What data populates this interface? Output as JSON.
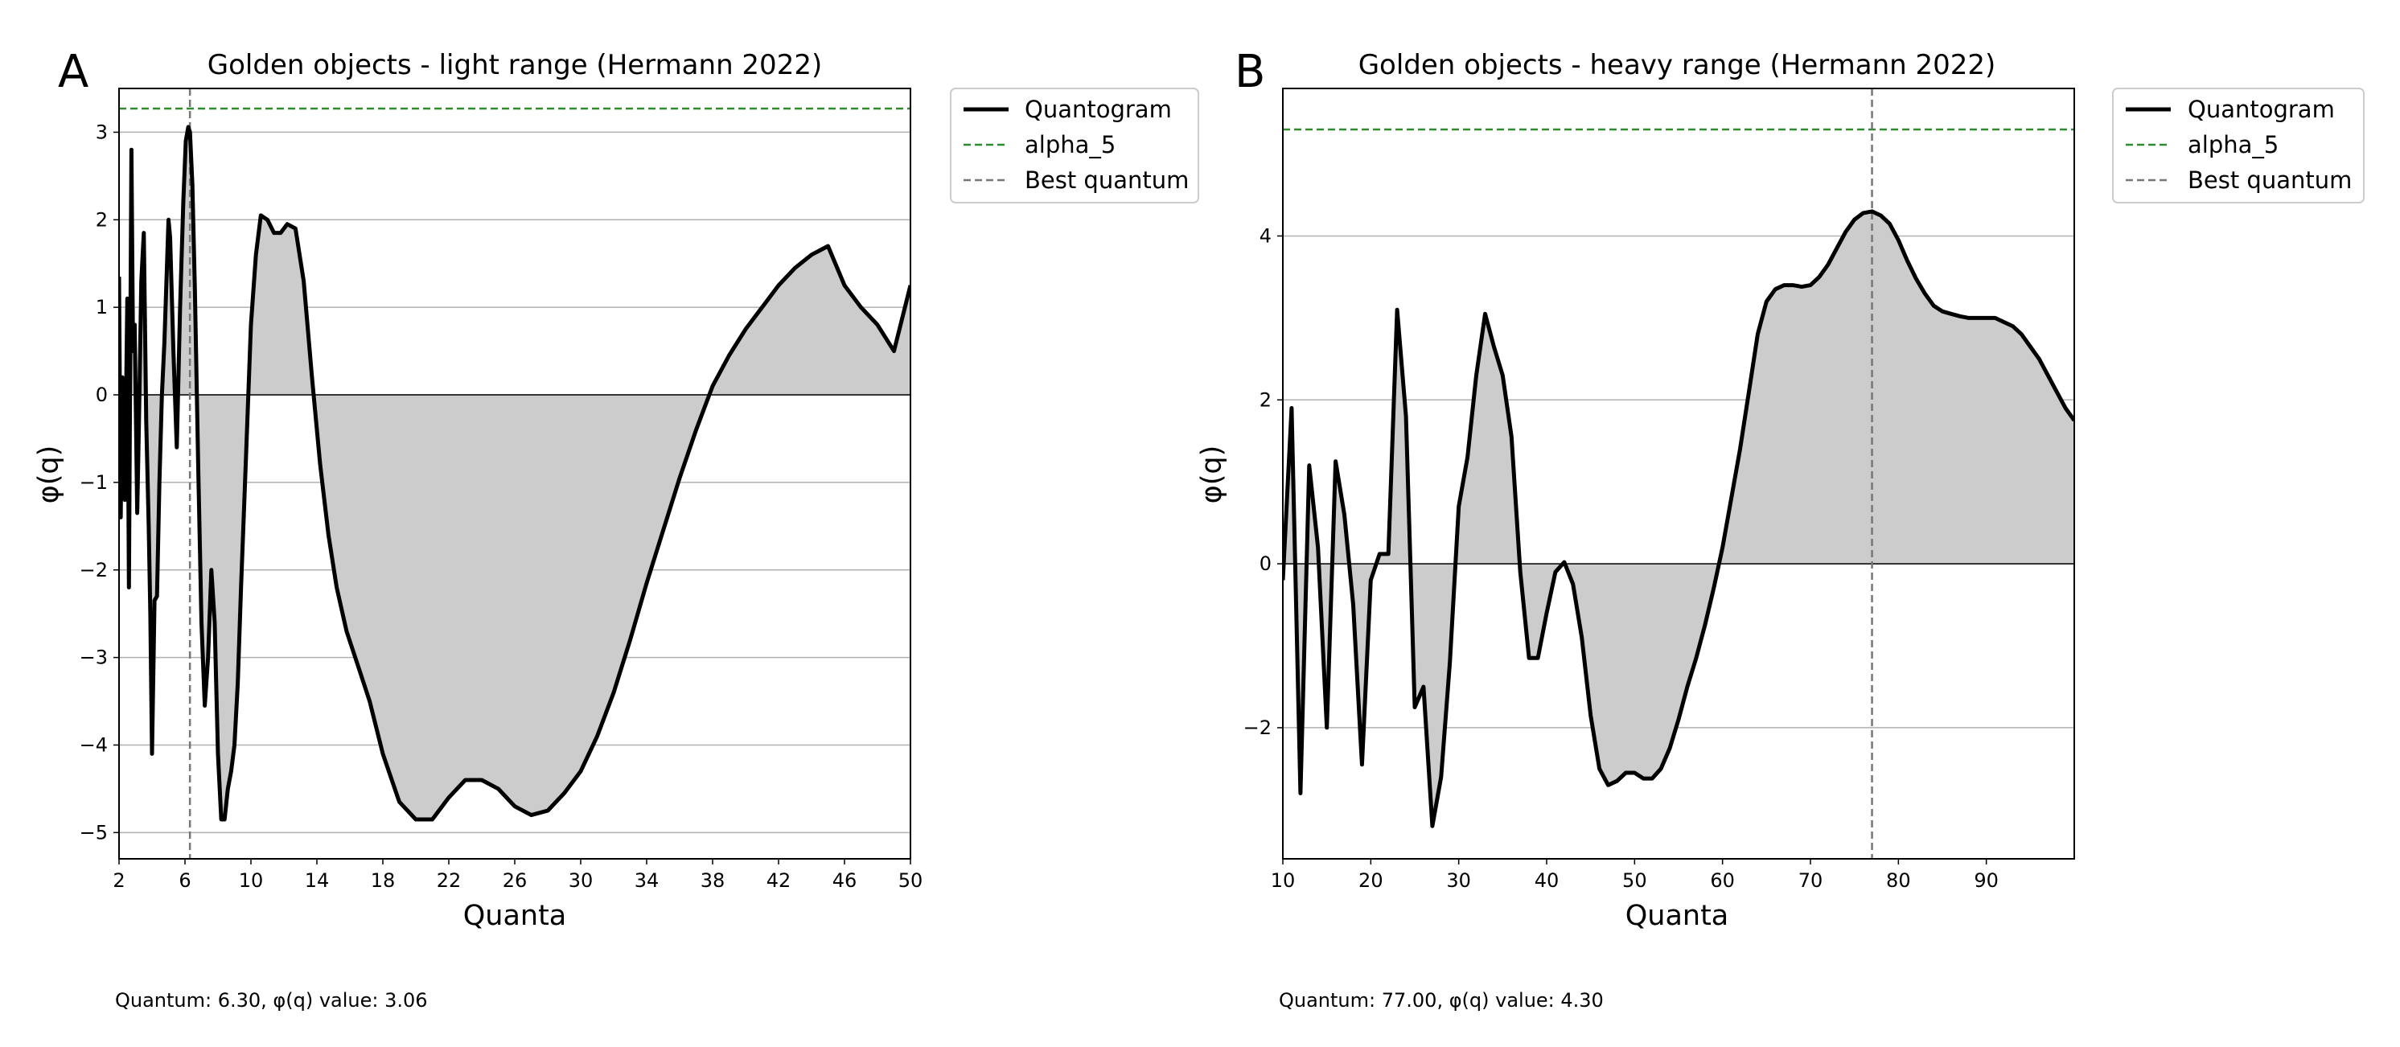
{
  "figure": {
    "panel_labels": [
      "A",
      "B"
    ]
  },
  "chart_data": [
    {
      "type": "line",
      "panel": "A",
      "title": "Golden objects - light range (Hermann 2022)",
      "xlabel": "Quanta",
      "ylabel": "φ(q)",
      "xlim": [
        2,
        50
      ],
      "ylim": [
        -5.3,
        3.5
      ],
      "xticks": [
        2,
        6,
        10,
        14,
        18,
        22,
        26,
        30,
        34,
        38,
        42,
        46,
        50
      ],
      "yticks": [
        3,
        2,
        1,
        0,
        -1,
        -2,
        -3,
        -4,
        -5
      ],
      "grid": "horizontal",
      "legend_position": "outside-top-right",
      "fill_between_zero": true,
      "series": [
        {
          "name": "Quantogram",
          "color": "#000000",
          "x": [
            2.0,
            2.1,
            2.2,
            2.35,
            2.5,
            2.6,
            2.75,
            2.85,
            2.95,
            3.1,
            3.2,
            3.35,
            3.5,
            3.65,
            3.8,
            3.9,
            4.0,
            4.15,
            4.3,
            4.45,
            4.6,
            4.75,
            4.9,
            5.0,
            5.1,
            5.3,
            5.5,
            5.7,
            5.9,
            6.05,
            6.2,
            6.3,
            6.45,
            6.6,
            6.8,
            7.0,
            7.2,
            7.4,
            7.6,
            7.8,
            8.0,
            8.2,
            8.4,
            8.6,
            8.8,
            9.0,
            9.2,
            9.4,
            9.7,
            10.0,
            10.3,
            10.6,
            11.0,
            11.4,
            11.8,
            12.2,
            12.7,
            13.2,
            13.7,
            14.2,
            14.7,
            15.2,
            15.8,
            16.5,
            17.2,
            18.0,
            19.0,
            20.0,
            21.0,
            22.0,
            23.0,
            24.0,
            25.0,
            26.0,
            27.0,
            28.0,
            29.0,
            30.0,
            31.0,
            32.0,
            33.0,
            34.0,
            35.0,
            36.0,
            37.0,
            38.0,
            39.0,
            40.0,
            41.0,
            42.0,
            43.0,
            44.0,
            45.0,
            46.0,
            47.0,
            48.0,
            49.0,
            50.0
          ],
          "y": [
            1.35,
            -1.4,
            0.2,
            -1.2,
            1.1,
            -2.2,
            2.8,
            0.5,
            0.8,
            -1.35,
            -0.4,
            1.3,
            1.85,
            -0.3,
            -1.5,
            -2.5,
            -4.1,
            -2.35,
            -2.3,
            -1.0,
            0.0,
            0.6,
            1.45,
            2.0,
            1.8,
            0.5,
            -0.6,
            1.0,
            2.2,
            2.9,
            3.06,
            3.0,
            2.4,
            1.2,
            -0.8,
            -2.6,
            -3.55,
            -3.0,
            -2.0,
            -2.6,
            -4.1,
            -4.85,
            -4.85,
            -4.5,
            -4.3,
            -4.0,
            -3.3,
            -2.2,
            -0.7,
            0.8,
            1.6,
            2.05,
            2.0,
            1.85,
            1.85,
            1.95,
            1.9,
            1.3,
            0.2,
            -0.8,
            -1.6,
            -2.2,
            -2.7,
            -3.1,
            -3.5,
            -4.1,
            -4.65,
            -4.85,
            -4.85,
            -4.6,
            -4.4,
            -4.4,
            -4.5,
            -4.7,
            -4.8,
            -4.75,
            -4.55,
            -4.3,
            -3.9,
            -3.4,
            -2.8,
            -2.15,
            -1.55,
            -0.95,
            -0.4,
            0.1,
            0.45,
            0.75,
            1.0,
            1.25,
            1.45,
            1.6,
            1.7,
            1.25,
            1.0,
            0.8,
            0.5,
            1.25
          ]
        },
        {
          "name": "alpha_5",
          "color": "#2e8b2e",
          "y": 3.27
        },
        {
          "name": "Best quantum",
          "color": "#777777",
          "x": 6.3
        }
      ],
      "annotation": "Quantum: 6.30, φ(q) value: 3.06"
    },
    {
      "type": "line",
      "panel": "B",
      "title": "Golden objects - heavy range (Hermann 2022)",
      "xlabel": "Quanta",
      "ylabel": "φ(q)",
      "xlim": [
        10,
        100
      ],
      "ylim": [
        -3.6,
        5.8
      ],
      "xticks": [
        10,
        20,
        30,
        40,
        50,
        60,
        70,
        80,
        90
      ],
      "yticks": [
        4,
        2,
        0,
        -2
      ],
      "grid": "horizontal",
      "legend_position": "outside-top-right",
      "fill_between_zero": true,
      "series": [
        {
          "name": "Quantogram",
          "color": "#000000",
          "x": [
            10,
            11,
            12,
            13,
            14,
            15,
            16,
            17,
            18,
            19,
            20,
            21,
            22,
            23,
            24,
            25,
            26,
            27,
            28,
            29,
            30,
            31,
            32,
            33,
            34,
            35,
            36,
            37,
            38,
            39,
            40,
            41,
            42,
            43,
            44,
            45,
            46,
            47,
            48,
            49,
            50,
            51,
            52,
            53,
            54,
            55,
            56,
            57,
            58,
            59,
            60,
            61,
            62,
            63,
            64,
            65,
            66,
            67,
            68,
            69,
            70,
            71,
            72,
            73,
            74,
            75,
            76,
            77,
            78,
            79,
            80,
            81,
            82,
            83,
            84,
            85,
            86,
            87,
            88,
            89,
            90,
            91,
            92,
            93,
            94,
            95,
            96,
            97,
            98,
            99,
            100
          ],
          "y": [
            -0.2,
            1.9,
            -2.8,
            1.2,
            0.2,
            -2.0,
            1.25,
            0.6,
            -0.5,
            -2.45,
            -0.2,
            0.12,
            0.12,
            3.1,
            1.8,
            -1.75,
            -1.5,
            -3.2,
            -2.6,
            -1.2,
            0.7,
            1.3,
            2.3,
            3.05,
            2.65,
            2.3,
            1.55,
            -0.1,
            -1.15,
            -1.15,
            -0.6,
            -0.1,
            0.02,
            -0.25,
            -0.9,
            -1.85,
            -2.5,
            -2.7,
            -2.65,
            -2.55,
            -2.55,
            -2.62,
            -2.62,
            -2.5,
            -2.25,
            -1.9,
            -1.5,
            -1.15,
            -0.75,
            -0.3,
            0.2,
            0.8,
            1.4,
            2.1,
            2.8,
            3.2,
            3.35,
            3.4,
            3.4,
            3.38,
            3.4,
            3.5,
            3.65,
            3.85,
            4.05,
            4.2,
            4.28,
            4.3,
            4.25,
            4.15,
            3.95,
            3.7,
            3.48,
            3.3,
            3.15,
            3.08,
            3.05,
            3.02,
            3.0,
            3.0,
            3.0,
            3.0,
            2.95,
            2.9,
            2.8,
            2.65,
            2.5,
            2.3,
            2.1,
            1.9,
            1.75
          ]
        },
        {
          "name": "alpha_5",
          "color": "#2e8b2e",
          "y": 5.3
        },
        {
          "name": "Best quantum",
          "color": "#777777",
          "x": 77
        }
      ],
      "annotation": "Quantum: 77.00, φ(q) value: 4.30"
    }
  ]
}
